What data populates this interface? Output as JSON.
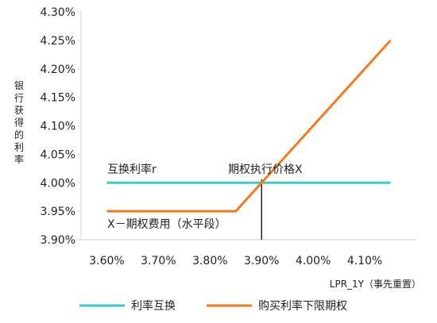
{
  "chart_data": {
    "type": "line",
    "xlabel": "LPR_1Y（事先重置）",
    "ylabel": "银行获得的利率",
    "x_unit": "%",
    "y_unit": "%",
    "xlim": [
      3.55,
      4.2
    ],
    "ylim": [
      3.9,
      4.3
    ],
    "x_ticks": [
      "3.60%",
      "3.70%",
      "3.80%",
      "3.90%",
      "4.00%",
      "4.10%"
    ],
    "x_tick_values": [
      3.6,
      3.7,
      3.8,
      3.9,
      4.0,
      4.1
    ],
    "y_ticks": [
      "3.90%",
      "3.95%",
      "4.00%",
      "4.05%",
      "4.10%",
      "4.15%",
      "4.20%",
      "4.25%",
      "4.30%"
    ],
    "y_tick_values": [
      3.9,
      3.95,
      4.0,
      4.05,
      4.1,
      4.15,
      4.2,
      4.25,
      4.3
    ],
    "grid": false,
    "legend_position": "bottom",
    "series": [
      {
        "name": "利率互换",
        "color": "#3CC8C8",
        "x": [
          3.6,
          4.15
        ],
        "y": [
          4.0,
          4.0
        ]
      },
      {
        "name": "购买利率下限期权",
        "color": "#F5791F",
        "x": [
          3.6,
          3.85,
          4.15
        ],
        "y": [
          3.95,
          3.95,
          4.25
        ]
      }
    ],
    "annotations": [
      {
        "id": "swap_rate",
        "text": "互换利率r"
      },
      {
        "id": "strike",
        "text": "期权执行价格X"
      },
      {
        "id": "premium",
        "text": "X－期权费用（水平段）"
      }
    ],
    "strike_x": 3.9,
    "axis_color": "#D9D9D9",
    "marker_color": "#000000"
  }
}
